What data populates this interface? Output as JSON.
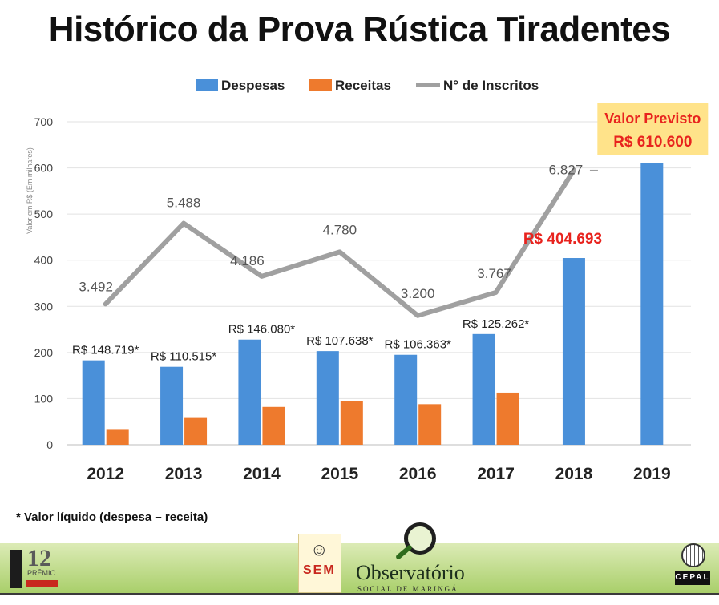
{
  "title": "Histórico da Prova Rústica Tiradentes",
  "footnote": "* Valor líquido (despesa – receita)",
  "colors": {
    "despesas": "#4a90d9",
    "receitas": "#ee7a2d",
    "inscritos": "#a0a0a0",
    "highlight_text": "#e8231e",
    "highlight_box": "#ffe38a",
    "banner": "#a9cf6a"
  },
  "chart_data": {
    "type": "bar",
    "ylabel": "Valor em R$   (Em milhares)",
    "ylim": [
      0,
      700
    ],
    "yticks": [
      0,
      100,
      200,
      300,
      400,
      500,
      600,
      700
    ],
    "grid": true,
    "legend_position": "top",
    "categories": [
      "2012",
      "2013",
      "2014",
      "2015",
      "2016",
      "2017",
      "2018",
      "2019"
    ],
    "series": [
      {
        "name": "Despesas",
        "type": "bar",
        "values": [
          183,
          169,
          228,
          203,
          195,
          240,
          404.693,
          610.6
        ]
      },
      {
        "name": "Receitas",
        "type": "bar",
        "values": [
          34,
          58,
          82,
          95,
          88,
          113,
          null,
          null
        ]
      },
      {
        "name": "N° de Inscritos",
        "type": "line",
        "values": [
          3492,
          5488,
          4186,
          4780,
          3200,
          3767,
          6827,
          null
        ],
        "plotted_on_value_axis": [
          305,
          480,
          365,
          418,
          280,
          330,
          595,
          null
        ]
      }
    ],
    "value_labels": [
      "R$ 148.719*",
      "R$ 110.515*",
      "R$ 146.080*",
      "R$ 107.638*",
      "R$ 106.363*",
      "R$ 125.262*",
      "R$ 404.693",
      ""
    ],
    "line_labels": [
      "3.492",
      "5.488",
      "4.186",
      "4.780",
      "3.200",
      "3.767",
      "6.827",
      ""
    ],
    "annotation": {
      "line1": "Valor Previsto",
      "line2": "R$ 610.600"
    }
  },
  "logos": {
    "premio_number": "12",
    "premio_word": "PRÊMIO",
    "sem_letters": "SEM",
    "observatorio_name": "Observatório",
    "observatorio_sub": "SOCIAL DE MARINGÁ",
    "cepal": "CEPAL"
  }
}
